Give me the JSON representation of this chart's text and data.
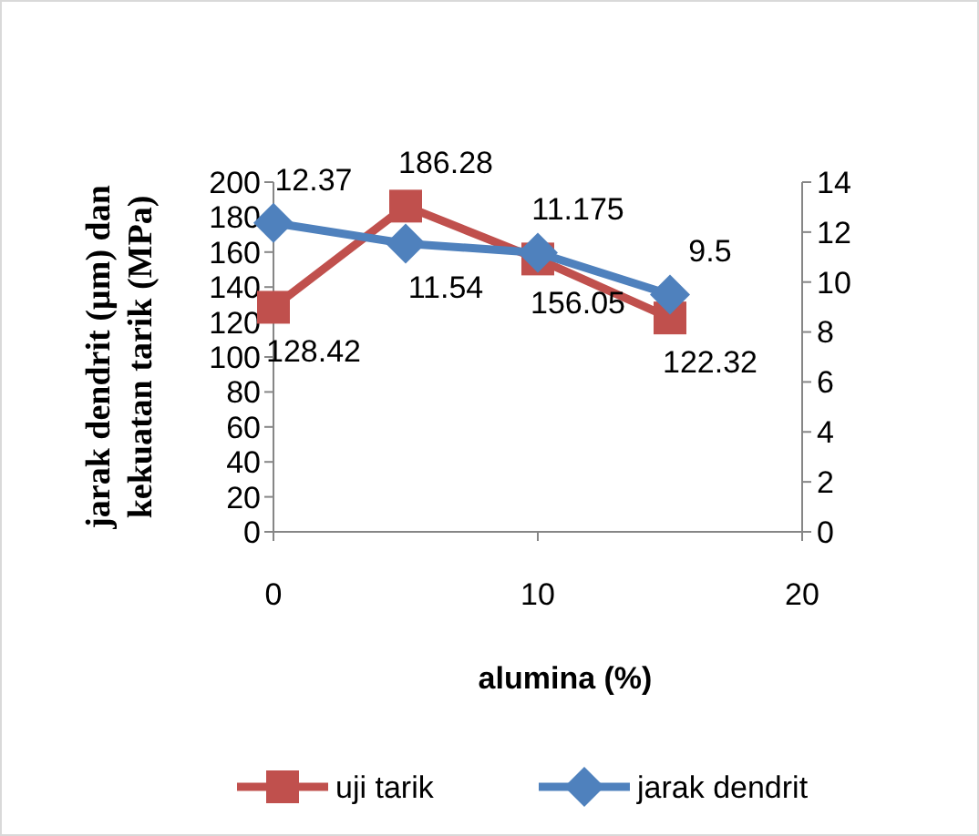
{
  "chart_data": {
    "type": "line",
    "x": [
      0,
      5,
      10,
      15
    ],
    "xlabel": "alumina (%)",
    "ylabel": "jarak dendrit (µm) dan kekuatan tarik (MPa)",
    "series": [
      {
        "name": "uji tarik",
        "color": "#c0504d",
        "marker": "square",
        "values": [
          128.42,
          186.28,
          156.05,
          122.32
        ]
      },
      {
        "name": "jarak dendrit",
        "color": "#4f81bd",
        "marker": "diamond",
        "axis": "y2",
        "values": [
          12.37,
          11.54,
          11.175,
          9.5
        ]
      }
    ],
    "xlim": [
      0,
      20
    ],
    "xticks": [
      0,
      10,
      20
    ],
    "ylim": [
      0,
      200
    ],
    "yticks": [
      0,
      20,
      40,
      60,
      80,
      100,
      120,
      140,
      160,
      180,
      200
    ],
    "y2lim": [
      0,
      14
    ],
    "y2ticks": [
      0,
      2,
      4,
      6,
      8,
      10,
      12,
      14
    ],
    "data_labels": true,
    "legend": "bottom",
    "grid": false
  }
}
